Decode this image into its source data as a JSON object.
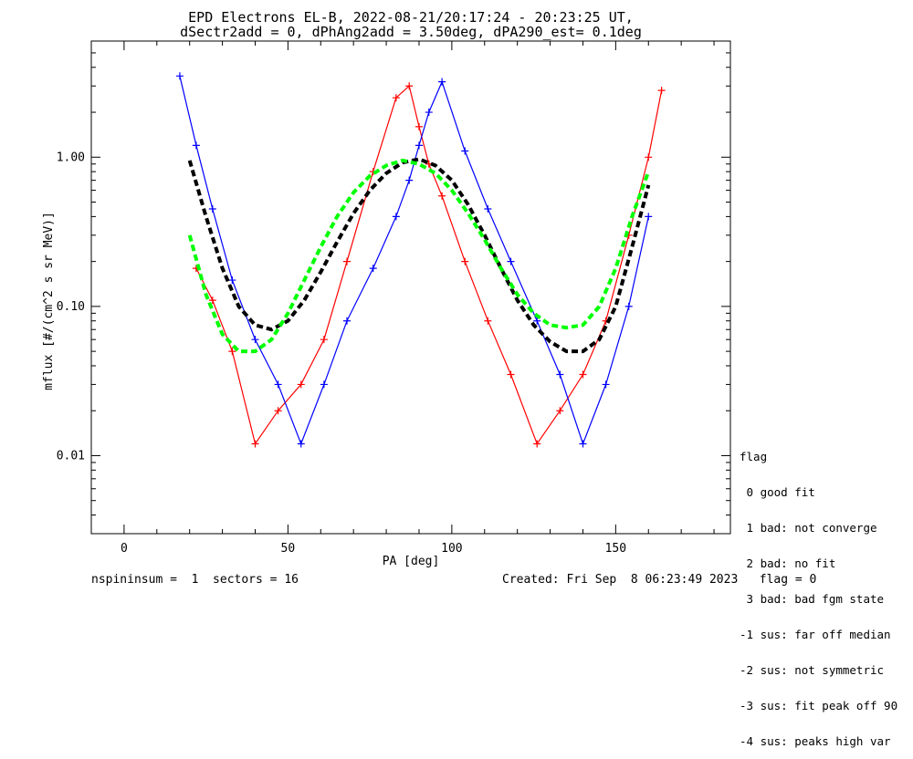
{
  "chart_data": {
    "type": "scatter",
    "title_line1": "EPD Electrons EL-B, 2022-08-21/20:17:24 - 20:23:25 UT,",
    "title_line2": "dSectr2add = 0, dPhAng2add = 3.50deg, dPA290_est=   0.1deg",
    "xlabel": "PA [deg]",
    "ylabel": "mflux [#/(cm^2 s sr MeV)]",
    "x_ticks": [
      "0",
      "50",
      "100",
      "150"
    ],
    "y_ticks": [
      "0.01",
      "0.10",
      "1.00"
    ],
    "xlim": [
      -10,
      185
    ],
    "ylim": [
      0.003,
      6
    ],
    "yscale": "log",
    "series": [
      {
        "color": "#ff0000",
        "pa": [
          22,
          27,
          33,
          40,
          47,
          54,
          61,
          68,
          76,
          83,
          87,
          90,
          93,
          97,
          104,
          111,
          118,
          126,
          133,
          140,
          147,
          154,
          160,
          164
        ],
        "values": [
          0.18,
          0.11,
          0.05,
          0.012,
          0.02,
          0.03,
          0.06,
          0.2,
          0.8,
          2.5,
          3.0,
          1.6,
          0.9,
          0.55,
          0.2,
          0.08,
          0.035,
          0.012,
          0.02,
          0.035,
          0.08,
          0.3,
          1.0,
          2.8
        ]
      },
      {
        "color": "#0000ff",
        "pa": [
          17,
          22,
          27,
          33,
          40,
          47,
          54,
          61,
          68,
          76,
          83,
          87,
          90,
          93,
          97,
          104,
          111,
          118,
          126,
          133,
          140,
          147,
          154,
          160
        ],
        "values": [
          3.5,
          1.2,
          0.45,
          0.15,
          0.06,
          0.03,
          0.012,
          0.03,
          0.08,
          0.18,
          0.4,
          0.7,
          1.2,
          2.0,
          3.2,
          1.1,
          0.45,
          0.2,
          0.08,
          0.035,
          0.012,
          0.03,
          0.1,
          0.4
        ]
      },
      {
        "color": "#000000",
        "style": "dashed",
        "pa": [
          20,
          25,
          30,
          35,
          40,
          45,
          50,
          55,
          60,
          65,
          70,
          75,
          80,
          85,
          90,
          95,
          100,
          105,
          110,
          115,
          120,
          125,
          130,
          135,
          140,
          145,
          150,
          155,
          160
        ],
        "values": [
          0.95,
          0.4,
          0.18,
          0.1,
          0.075,
          0.07,
          0.08,
          0.11,
          0.17,
          0.27,
          0.42,
          0.6,
          0.78,
          0.92,
          0.97,
          0.88,
          0.7,
          0.48,
          0.3,
          0.18,
          0.11,
          0.075,
          0.058,
          0.05,
          0.05,
          0.06,
          0.1,
          0.25,
          0.65
        ]
      },
      {
        "color": "#00ff00",
        "style": "dashed",
        "pa": [
          20,
          25,
          30,
          35,
          40,
          45,
          50,
          55,
          60,
          65,
          70,
          75,
          80,
          85,
          90,
          95,
          100,
          105,
          110,
          115,
          120,
          125,
          130,
          135,
          140,
          145,
          150,
          155,
          160
        ],
        "values": [
          0.3,
          0.12,
          0.065,
          0.05,
          0.05,
          0.06,
          0.09,
          0.15,
          0.25,
          0.4,
          0.58,
          0.75,
          0.88,
          0.95,
          0.9,
          0.78,
          0.6,
          0.42,
          0.28,
          0.18,
          0.12,
          0.09,
          0.075,
          0.072,
          0.075,
          0.1,
          0.18,
          0.4,
          0.8
        ]
      }
    ]
  },
  "legend": {
    "title": "flag",
    "items": [
      " 0 good fit",
      " 1 bad: not converge",
      " 2 bad: no fit",
      " 3 bad: bad fgm state",
      "-1 sus: far off median",
      "-2 sus: not symmetric",
      "-3 sus: fit peak off 90",
      "-4 sus: peaks high var"
    ]
  },
  "footer": {
    "left": "nspininsum =  1  sectors = 16",
    "right": "Created: Fri Sep  8 06:23:49 2023   flag = 0"
  }
}
